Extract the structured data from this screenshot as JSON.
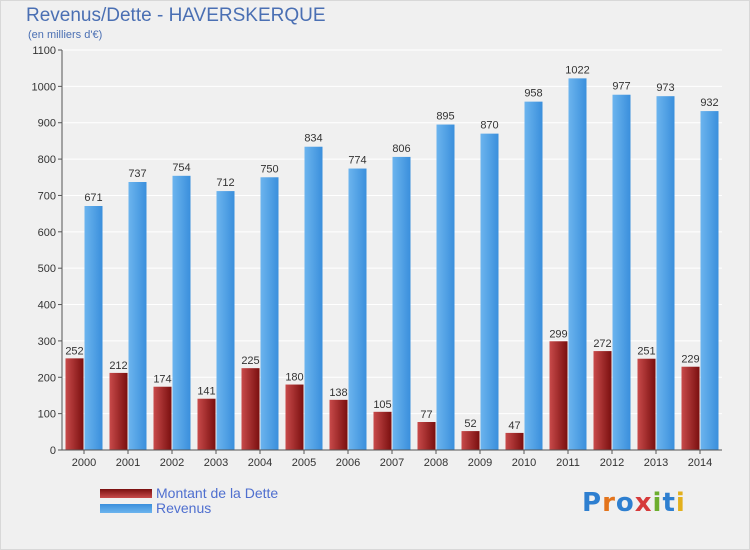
{
  "title": "Revenus/Dette - HAVERSKERQUE",
  "subtitle": "(en milliers d'€)",
  "legend": {
    "debt_label": "Montant de la Dette",
    "revenue_label": "Revenus"
  },
  "logo": {
    "text": "Proxiti",
    "letters": [
      "P",
      "r",
      "o",
      "x",
      "i",
      "t",
      "i"
    ],
    "letter_colors": [
      "#2e7fd0",
      "#e3741c",
      "#2e7fd0",
      "#d63a3a",
      "#6cae2e",
      "#2e7fd0",
      "#e3b01c"
    ]
  },
  "colors": {
    "debt": "#7a0f0f",
    "debt_light": "#c84a4a",
    "revenue": "#3a8fdc",
    "revenue_light": "#6cb4ee",
    "background": "#f0f0f0",
    "grid": "#ffffff"
  },
  "chart_data": {
    "type": "bar",
    "title": "Revenus/Dette - HAVERSKERQUE",
    "subtitle": "(en milliers d'€)",
    "categories": [
      "2000",
      "2001",
      "2002",
      "2003",
      "2004",
      "2005",
      "2006",
      "2007",
      "2008",
      "2009",
      "2010",
      "2011",
      "2012",
      "2013",
      "2014"
    ],
    "series": [
      {
        "name": "Montant de la Dette",
        "values": [
          252,
          212,
          174,
          141,
          225,
          180,
          138,
          105,
          77,
          52,
          47,
          299,
          272,
          251,
          229
        ]
      },
      {
        "name": "Revenus",
        "values": [
          671,
          737,
          754,
          712,
          750,
          834,
          774,
          806,
          895,
          870,
          958,
          1022,
          977,
          973,
          932
        ]
      }
    ],
    "ylim": [
      0,
      1100
    ],
    "yticks": [
      0,
      100,
      200,
      300,
      400,
      500,
      600,
      700,
      800,
      900,
      1000,
      1100
    ],
    "grid": true,
    "legend_position": "bottom-left"
  }
}
